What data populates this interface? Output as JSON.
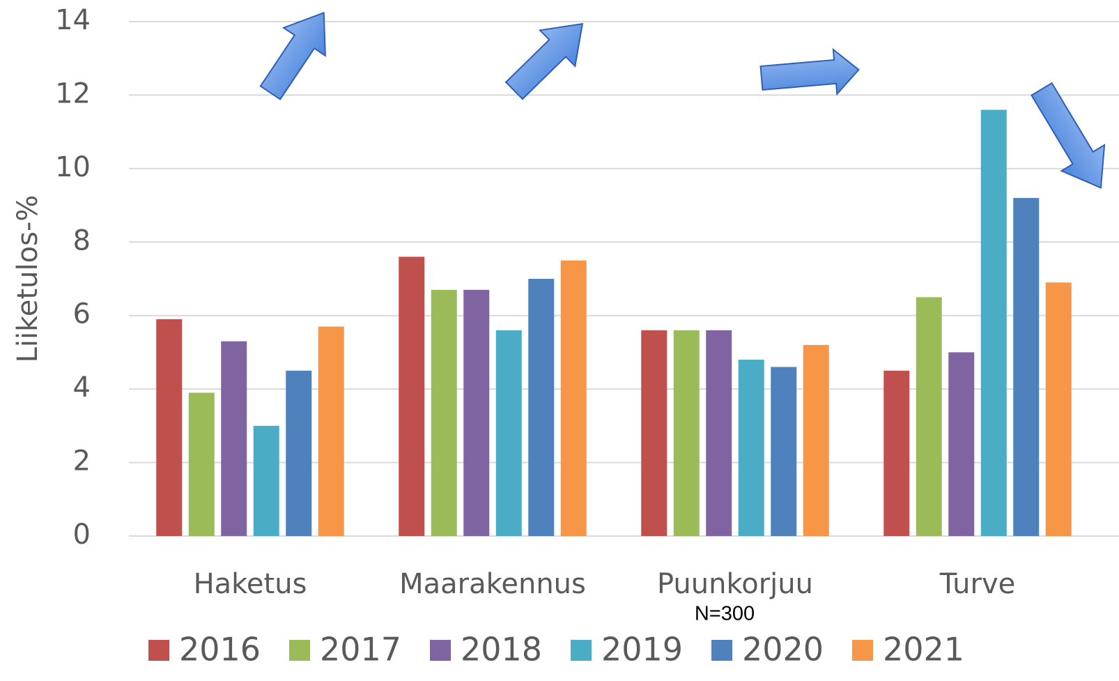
{
  "chart_data": {
    "type": "bar",
    "y_label": "Liiketulos-%",
    "annotation": "N=300",
    "categories": [
      "Haketus",
      "Maarakennus",
      "Puunkorjuu",
      "Turve"
    ],
    "series": [
      {
        "name": "2016",
        "color": "#c0504d",
        "values": [
          5.9,
          7.6,
          5.6,
          4.5
        ]
      },
      {
        "name": "2017",
        "color": "#9bbb59",
        "values": [
          3.9,
          6.7,
          5.6,
          6.5
        ]
      },
      {
        "name": "2018",
        "color": "#8064a2",
        "values": [
          5.3,
          6.7,
          5.6,
          5.0
        ]
      },
      {
        "name": "2019",
        "color": "#4bacc6",
        "values": [
          3.0,
          5.6,
          4.8,
          11.6
        ]
      },
      {
        "name": "2020",
        "color": "#4f81bd",
        "values": [
          4.5,
          7.0,
          4.6,
          9.2
        ]
      },
      {
        "name": "2021",
        "color": "#f79646",
        "values": [
          5.7,
          7.5,
          5.2,
          6.9
        ]
      }
    ],
    "ylim": [
      0,
      14
    ],
    "yticks": [
      0,
      2,
      4,
      6,
      8,
      10,
      12,
      14
    ],
    "grid": true,
    "legend": "bottom"
  }
}
